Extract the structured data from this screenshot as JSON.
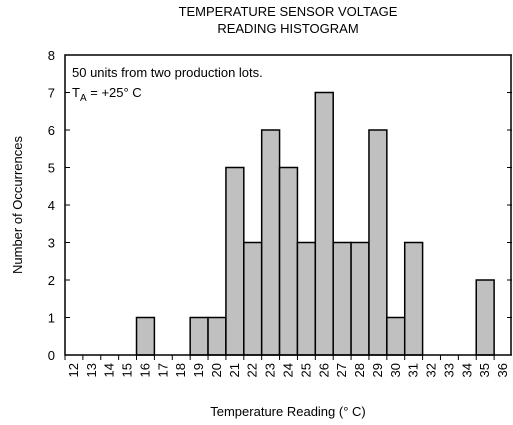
{
  "chart_data": {
    "type": "bar",
    "title": [
      "TEMPERATURE SENSOR VOLTAGE",
      "READING HISTOGRAM"
    ],
    "annotations": [
      "50 units from two production lots.",
      {
        "main": "T",
        "sub": "A",
        "rest": " = +25° C"
      }
    ],
    "xlabel": "Temperature Reading (° C)",
    "ylabel": "Number of Occurrences",
    "categories": [
      "12",
      "13",
      "14",
      "15",
      "16",
      "17",
      "18",
      "19",
      "20",
      "21",
      "22",
      "23",
      "24",
      "25",
      "26",
      "27",
      "28",
      "29",
      "30",
      "31",
      "32",
      "33",
      "34",
      "35",
      "36"
    ],
    "values": [
      0,
      0,
      0,
      0,
      1,
      0,
      0,
      1,
      1,
      5,
      3,
      6,
      5,
      3,
      7,
      3,
      3,
      6,
      1,
      3,
      0,
      0,
      0,
      2,
      0
    ],
    "color": "#c0c0c0",
    "ylim": [
      0,
      8
    ],
    "yticks": [
      0,
      1,
      2,
      3,
      4,
      5,
      6,
      7,
      8
    ],
    "grid": false
  }
}
